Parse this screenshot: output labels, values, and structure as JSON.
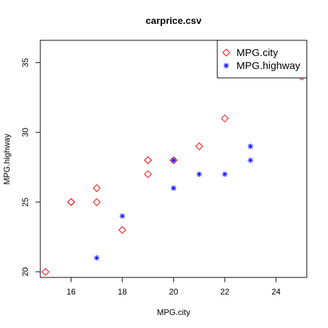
{
  "chart_data": {
    "type": "scatter",
    "title": "carprice.csv",
    "xlabel": "MPG.city",
    "ylabel": "MPG.highway",
    "xlim": [
      14.8,
      25.2
    ],
    "ylim": [
      19.6,
      36.6
    ],
    "xticks": [
      16,
      18,
      20,
      22,
      24
    ],
    "yticks": [
      20,
      25,
      30,
      35
    ],
    "grid": false,
    "legend_position": "top-right",
    "series": [
      {
        "name": "MPG.city",
        "marker": "diamond",
        "color": "#ff0000",
        "x": [
          15,
          16,
          16,
          17,
          17,
          18,
          19,
          19,
          19,
          20,
          21,
          22,
          25
        ],
        "y": [
          20,
          25,
          25,
          25,
          26,
          23,
          27,
          28,
          28,
          28,
          29,
          31,
          34
        ]
      },
      {
        "name": "MPG.highway",
        "marker": "asterisk",
        "color": "#0000ff",
        "x": [
          17,
          18,
          20,
          20,
          20,
          21,
          22,
          23,
          23
        ],
        "y": [
          21,
          24,
          26,
          28,
          28,
          27,
          27,
          28,
          29
        ]
      }
    ]
  }
}
